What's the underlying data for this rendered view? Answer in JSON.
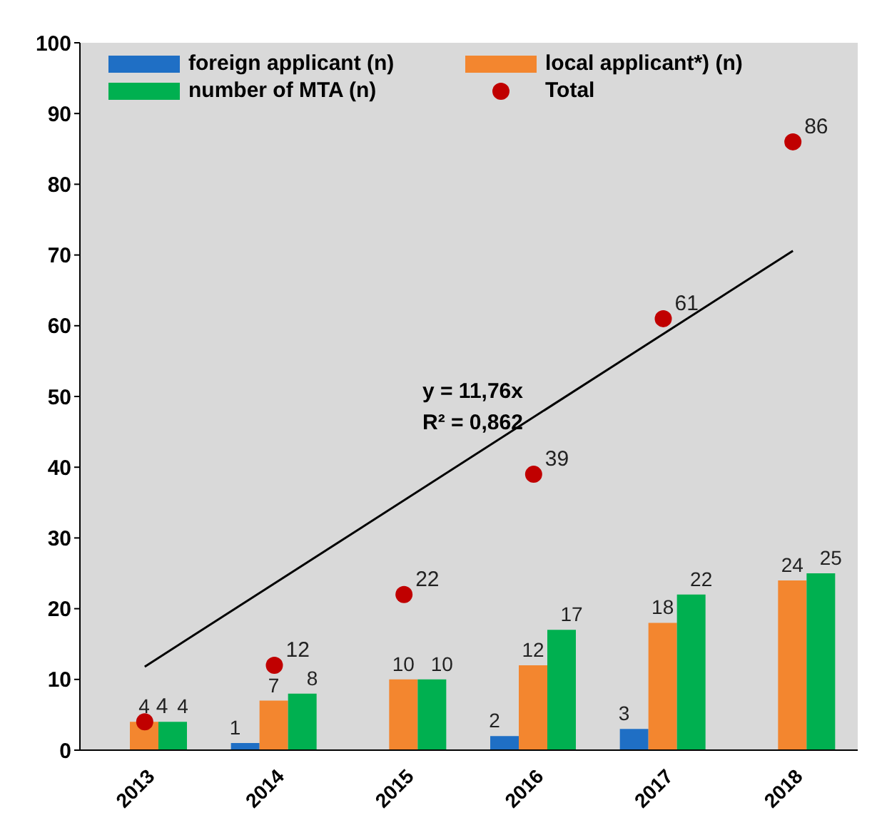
{
  "chart_data": {
    "type": "bar",
    "categories": [
      "2013",
      "2014",
      "2015",
      "2016",
      "2017",
      "2018"
    ],
    "series": [
      {
        "name": "foreign applicant (n)",
        "color": "#1f6fc5",
        "values": [
          null,
          1,
          null,
          2,
          3,
          null
        ],
        "value_labels": [
          null,
          "1",
          null,
          "2",
          "3",
          null
        ]
      },
      {
        "name": "local applicant*) (n)",
        "color": "#f3862f",
        "values": [
          4,
          7,
          10,
          12,
          18,
          24
        ],
        "value_labels": [
          "4",
          "7",
          "10",
          "12",
          "18",
          "24"
        ]
      },
      {
        "name": "number of MTA (n)",
        "color": "#00b050",
        "values": [
          4,
          8,
          10,
          17,
          22,
          25
        ],
        "value_labels": [
          "4",
          "8",
          "10",
          "17",
          "22",
          "25"
        ]
      },
      {
        "name": "Total",
        "type": "scatter",
        "color": "#c00000",
        "values": [
          4,
          12,
          22,
          39,
          61,
          86
        ],
        "value_labels": [
          "4",
          "12",
          "22",
          "39",
          "61",
          "86"
        ]
      },
      {
        "type": "line",
        "color": "#000000",
        "values": [
          11.8,
          null,
          null,
          null,
          null,
          70.6
        ]
      }
    ],
    "annotations": [
      "y = 11,76x",
      "R² = 0,862"
    ],
    "ylim": [
      0,
      100
    ],
    "yticks": [
      0,
      10,
      20,
      30,
      40,
      50,
      60,
      70,
      80,
      90,
      100
    ],
    "legend": "top left"
  }
}
